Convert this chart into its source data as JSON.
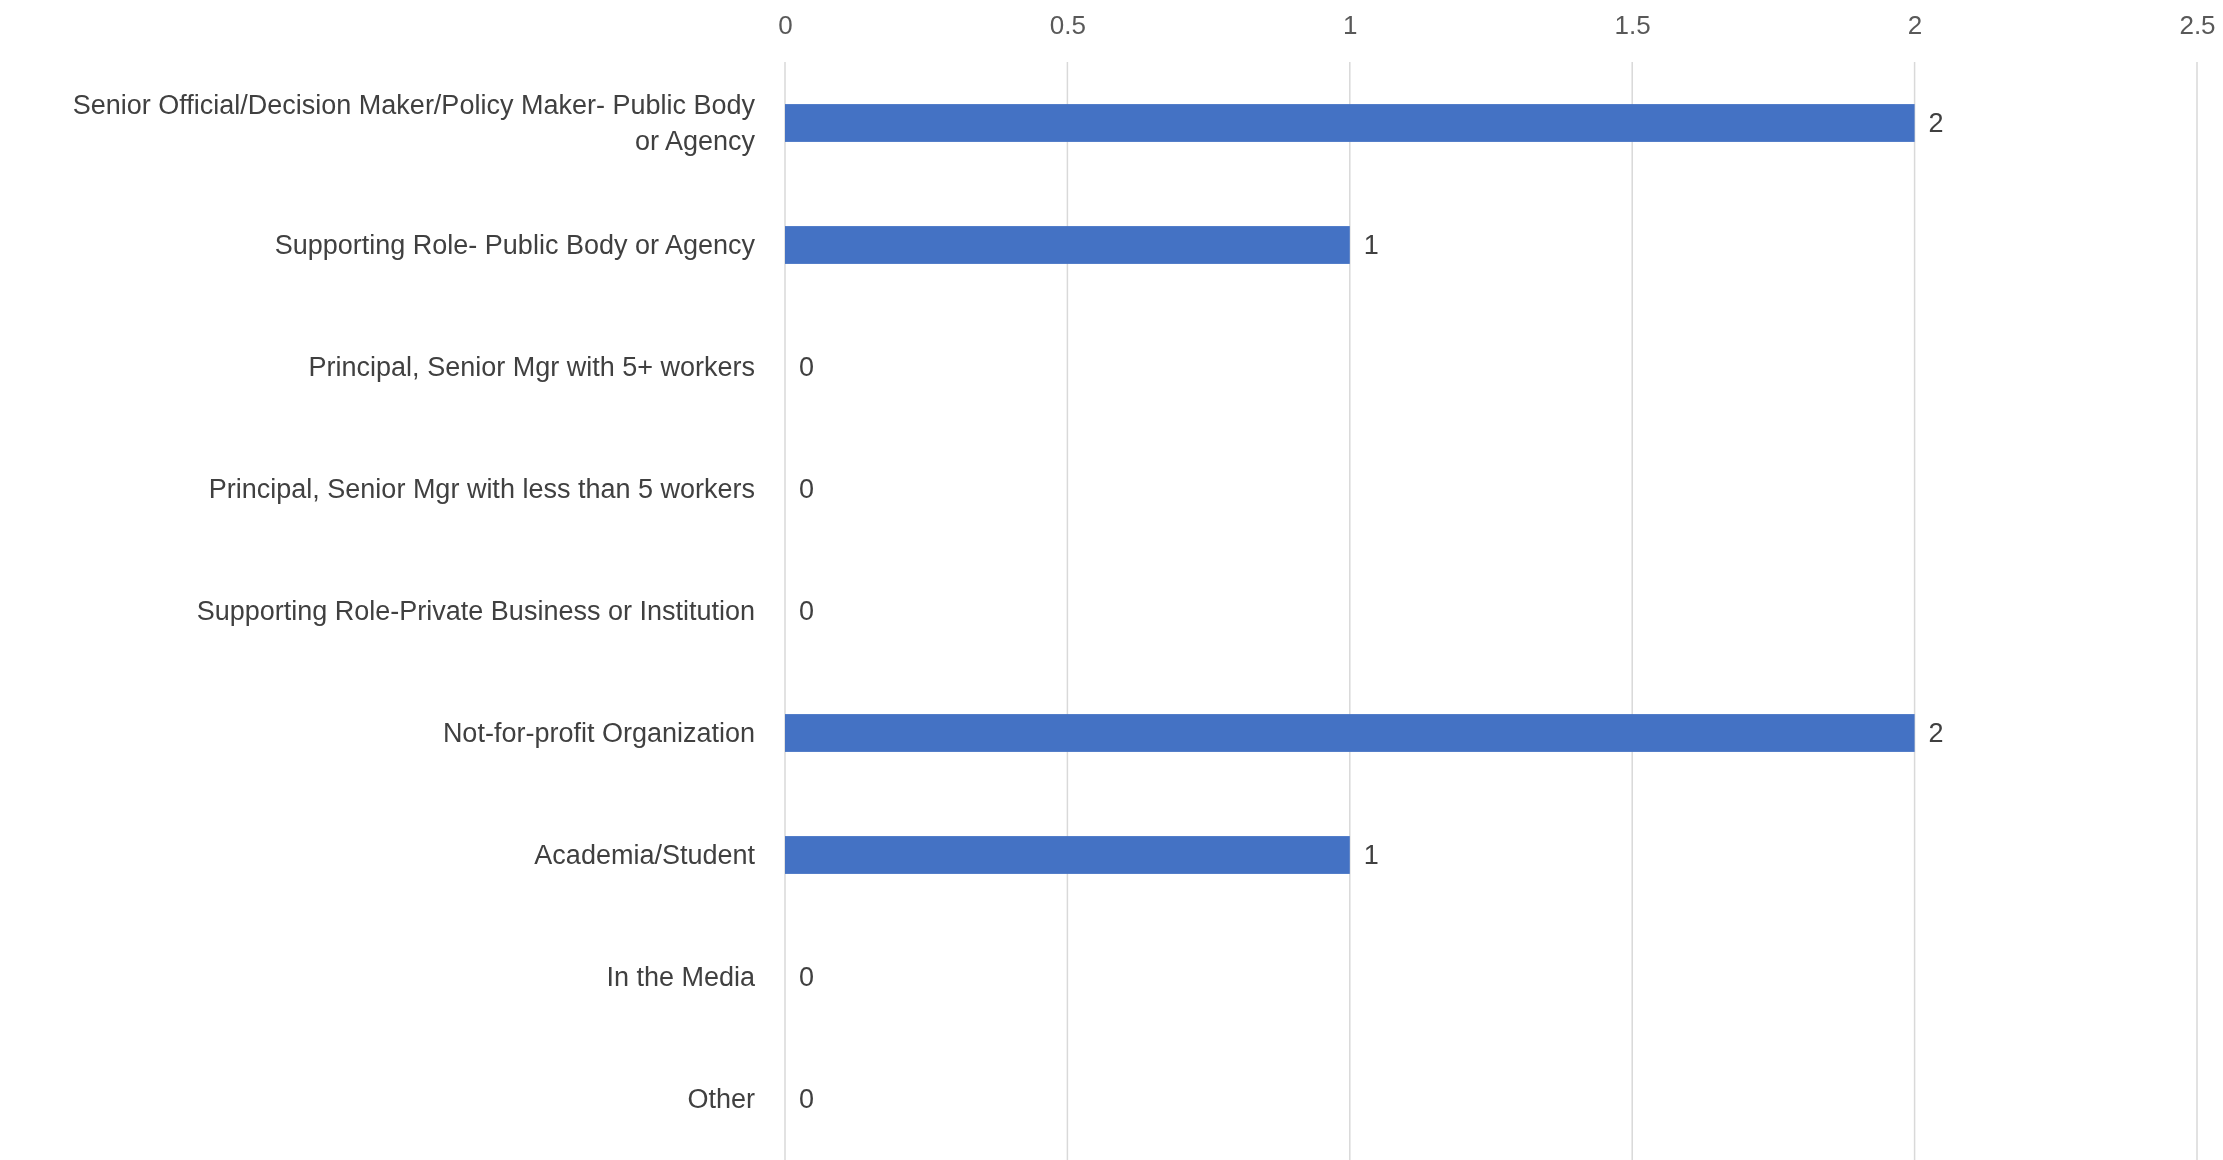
{
  "chart_data": {
    "type": "bar",
    "orientation": "horizontal",
    "categories": [
      "Senior Official/Decision Maker/Policy Maker- Public Body or Agency",
      "Supporting Role- Public Body or Agency",
      "Principal, Senior Mgr with 5+ workers",
      "Principal, Senior Mgr with less than 5 workers",
      "Supporting Role-Private Business or Institution",
      "Not-for-profit Organization",
      "Academia/Student",
      "In the Media",
      "Other"
    ],
    "values": [
      2,
      1,
      0,
      0,
      0,
      2,
      1,
      0,
      0
    ],
    "color": "#4472c4",
    "xlim": [
      0,
      2.5
    ],
    "xticks": [
      0,
      0.5,
      1,
      1.5,
      2,
      2.5
    ],
    "grid": "x",
    "data_labels": true
  }
}
